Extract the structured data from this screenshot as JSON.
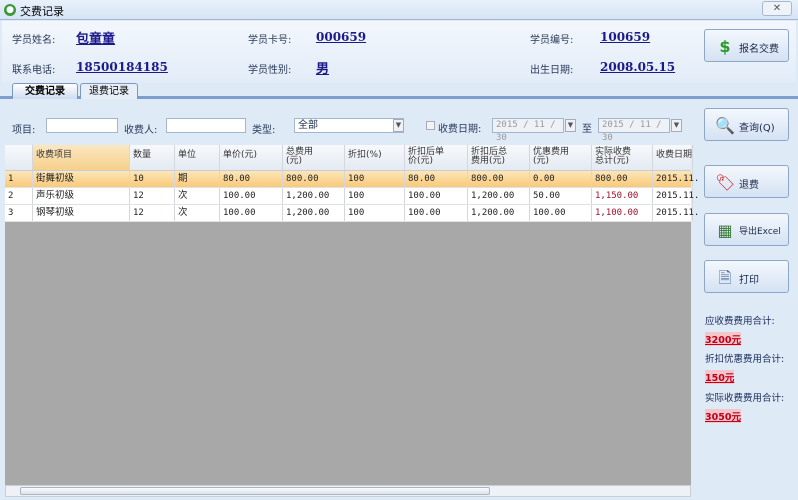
{
  "window": {
    "title": "交费记录",
    "close_icon": "close-icon"
  },
  "student": {
    "name_label": "学员姓名:",
    "name": "包童童",
    "card_label": "学员卡号:",
    "card": "000659",
    "id_label": "学员编号:",
    "id": "100659",
    "phone_label": "联系电话:",
    "phone": "18500184185",
    "gender_label": "学员性别:",
    "gender": "男",
    "birth_label": "出生日期:",
    "birth": "2008.05.15"
  },
  "buttons": {
    "enroll": "报名交费",
    "query": "查询(Q)",
    "refund": "退费",
    "export": "导出Excel",
    "print": "打印"
  },
  "tabs": [
    {
      "label": "交费记录",
      "active": true
    },
    {
      "label": "退费记录",
      "active": false
    }
  ],
  "filters": {
    "item_label": "项目:",
    "item_value": "",
    "payee_label": "收费人:",
    "payee_value": "",
    "type_label": "类型:",
    "type_value": "全部",
    "date_label": "收费日期:",
    "date_checked": false,
    "date_from": "2015 / 11 / 30",
    "to_label": "至",
    "date_to": "2015 / 11 / 30"
  },
  "table": {
    "columns": [
      "收费项目",
      "数量",
      "单位",
      "单价(元)",
      "总费用(元)",
      "折扣(%)",
      "折扣后单价(元)",
      "折扣后总费用(元)",
      "优惠费用(元)",
      "实际收费总计(元)",
      "收费日期"
    ],
    "header_lines": [
      [
        "收费项目"
      ],
      [
        "数量"
      ],
      [
        "单位"
      ],
      [
        "单价(元)"
      ],
      [
        "总费用(",
        "元)"
      ],
      [
        "折扣(%)"
      ],
      [
        "折扣后单",
        "价(元)"
      ],
      [
        "折扣后总",
        "费用(元)"
      ],
      [
        "优惠费用",
        "(元)"
      ],
      [
        "实际收费",
        "总计(元)"
      ],
      [
        "收费日期"
      ]
    ],
    "rows": [
      {
        "num": "1",
        "cells": [
          "街舞初级",
          "10",
          "期",
          "80.00",
          "800.00",
          "100",
          "80.00",
          "800.00",
          "0.00",
          "800.00",
          "2015.11."
        ],
        "selected": true
      },
      {
        "num": "2",
        "cells": [
          "声乐初级",
          "12",
          "次",
          "100.00",
          "1,200.00",
          "100",
          "100.00",
          "1,200.00",
          "50.00",
          "1,150.00",
          "2015.11."
        ],
        "selected": false
      },
      {
        "num": "3",
        "cells": [
          "钢琴初级",
          "12",
          "次",
          "100.00",
          "1,200.00",
          "100",
          "100.00",
          "1,200.00",
          "100.00",
          "1,100.00",
          "2015.11."
        ],
        "selected": false
      }
    ]
  },
  "totals": {
    "due_label": "应收费费用合计:",
    "due": "3200元",
    "discount_label": "折扣优惠费用合计:",
    "discount": "150元",
    "actual_label": "实际收费费用合计:",
    "actual": "3050元"
  },
  "colors": {
    "accent": "#1a1a8a",
    "selected_row": "#f9c97a",
    "total_red": "#c00018"
  }
}
